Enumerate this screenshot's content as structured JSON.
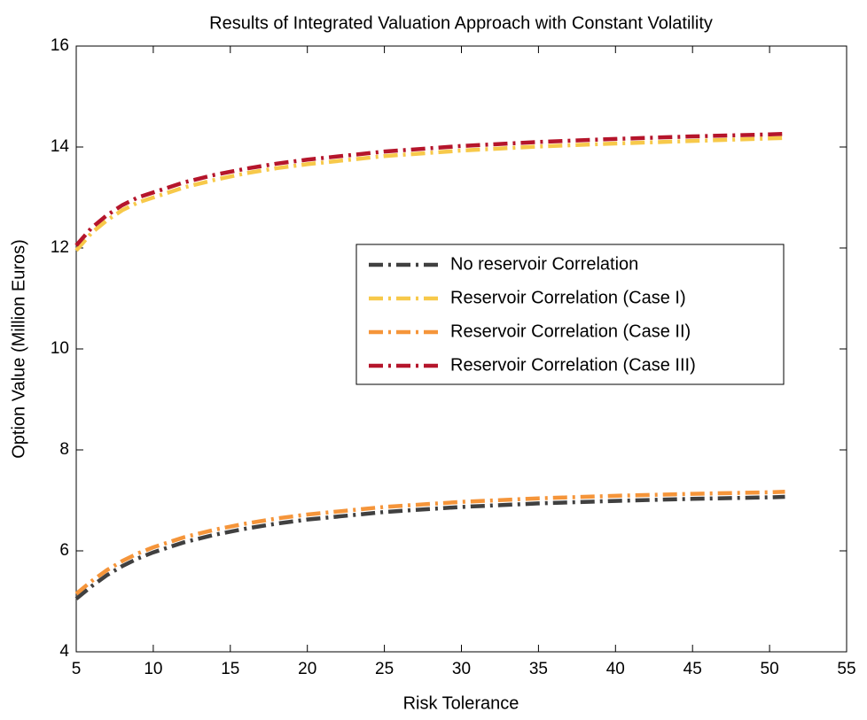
{
  "chart_data": {
    "type": "line",
    "title": "Results of Integrated Valuation Approach with Constant Volatility",
    "xlabel": "Risk Tolerance",
    "ylabel": "Option Value (Million Euros)",
    "x": [
      5,
      6,
      7,
      8,
      9,
      10,
      12,
      14,
      16,
      18,
      20,
      25,
      30,
      35,
      40,
      45,
      50,
      51
    ],
    "series": [
      {
        "name": "No reservoir Correlation",
        "color": "#404040",
        "values": [
          5.05,
          5.3,
          5.52,
          5.7,
          5.85,
          5.97,
          6.17,
          6.32,
          6.44,
          6.54,
          6.62,
          6.77,
          6.87,
          6.94,
          6.99,
          7.03,
          7.06,
          7.07
        ]
      },
      {
        "name": "Reservoir Correlation (Case I)",
        "color": "#f7c94a",
        "values": [
          11.95,
          12.3,
          12.55,
          12.75,
          12.9,
          13.0,
          13.2,
          13.35,
          13.48,
          13.58,
          13.66,
          13.82,
          13.93,
          14.01,
          14.07,
          14.12,
          14.17,
          14.18
        ]
      },
      {
        "name": "Reservoir Correlation (Case II)",
        "color": "#f5953a",
        "values": [
          5.15,
          5.4,
          5.62,
          5.8,
          5.95,
          6.07,
          6.27,
          6.42,
          6.54,
          6.64,
          6.72,
          6.87,
          6.97,
          7.04,
          7.09,
          7.13,
          7.16,
          7.17
        ]
      },
      {
        "name": "Reservoir Correlation (Case III)",
        "color": "#b5152b",
        "values": [
          12.05,
          12.4,
          12.65,
          12.85,
          13.0,
          13.1,
          13.3,
          13.45,
          13.57,
          13.67,
          13.75,
          13.91,
          14.02,
          14.1,
          14.16,
          14.21,
          14.25,
          14.26
        ]
      }
    ],
    "xlim": [
      5,
      55
    ],
    "xticks": [
      5,
      10,
      15,
      20,
      25,
      30,
      35,
      40,
      45,
      50,
      55
    ],
    "ylim": [
      4,
      16
    ],
    "yticks": [
      4,
      6,
      8,
      10,
      12,
      14,
      16
    ],
    "grid": false,
    "legend": "right",
    "line_style": "dash-dot"
  }
}
